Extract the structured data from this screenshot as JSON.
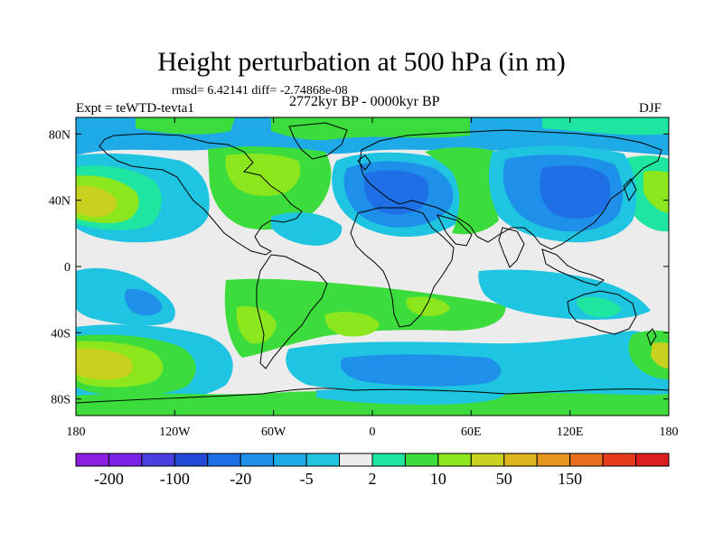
{
  "title": "Height perturbation at 500 hPa (in m)",
  "stats": "rmsd= 6.42141 diff= -2.74868e-08",
  "experiment": "Expt = teWTD-tevta1",
  "period": "2772kyr BP - 0000kyr BP",
  "season": "DJF",
  "map": {
    "lat_range": [
      -90,
      90
    ],
    "lon_range": [
      -180,
      180
    ],
    "lat_ticks": [
      {
        "value": 80,
        "label": "80N"
      },
      {
        "value": 40,
        "label": "40N"
      },
      {
        "value": 0,
        "label": "0"
      },
      {
        "value": -40,
        "label": "40S"
      },
      {
        "value": -80,
        "label": "80S"
      }
    ],
    "lon_ticks": [
      {
        "value": -180,
        "label": "180"
      },
      {
        "value": -120,
        "label": "120W"
      },
      {
        "value": -60,
        "label": "60W"
      },
      {
        "value": 0,
        "label": "0"
      },
      {
        "value": 60,
        "label": "60E"
      },
      {
        "value": 120,
        "label": "120E"
      },
      {
        "value": 180,
        "label": "180"
      }
    ]
  },
  "colorbar": {
    "colors": [
      "#8c1ee0",
      "#7a22e6",
      "#4b3ee0",
      "#2449d6",
      "#1e6ee6",
      "#1e90ea",
      "#1eaae6",
      "#1ec4e0",
      "#ececec",
      "#1ee6a0",
      "#3cdc3c",
      "#8ce61e",
      "#c8d21e",
      "#dcb41e",
      "#e6961e",
      "#e66e1e",
      "#e63c1e",
      "#dc1e1e"
    ],
    "labels": [
      "-200",
      "-100",
      "-20",
      "-5",
      "2",
      "10",
      "50",
      "150"
    ]
  }
}
